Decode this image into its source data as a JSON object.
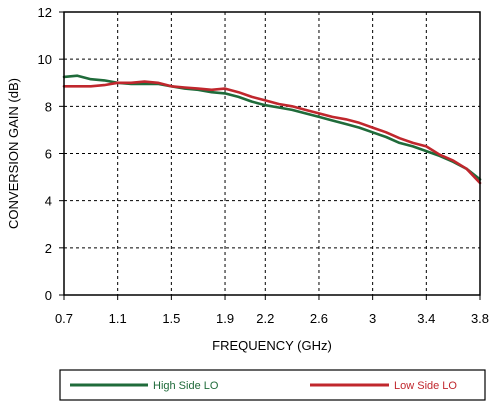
{
  "chart_data": {
    "type": "line",
    "title": "",
    "xlabel": "FREQUENCY (GHz)",
    "ylabel": "CONVERSION GAIN (dB)",
    "xlim": [
      0.7,
      3.8
    ],
    "ylim": [
      0,
      12
    ],
    "x_ticks": [
      0.7,
      1.1,
      1.5,
      1.9,
      2.2,
      2.6,
      3,
      3.4,
      3.8
    ],
    "x_tick_labels": [
      "0.7",
      "1.1",
      "1.5",
      "1.9",
      "2.2",
      "2.6",
      "3",
      "3.4",
      "3.8"
    ],
    "y_ticks": [
      0,
      2,
      4,
      6,
      8,
      10,
      12
    ],
    "y_tick_labels": [
      "0",
      "2",
      "4",
      "6",
      "8",
      "10",
      "12"
    ],
    "grid": true,
    "legend_position": "bottom",
    "series": [
      {
        "name": "High Side LO",
        "color": "#1f6b3a",
        "points": [
          [
            0.7,
            9.25
          ],
          [
            0.8,
            9.3
          ],
          [
            0.9,
            9.15
          ],
          [
            1.0,
            9.1
          ],
          [
            1.1,
            9.0
          ],
          [
            1.2,
            8.95
          ],
          [
            1.3,
            8.95
          ],
          [
            1.4,
            8.95
          ],
          [
            1.5,
            8.85
          ],
          [
            1.6,
            8.75
          ],
          [
            1.7,
            8.7
          ],
          [
            1.8,
            8.6
          ],
          [
            1.9,
            8.55
          ],
          [
            2.0,
            8.4
          ],
          [
            2.1,
            8.2
          ],
          [
            2.2,
            8.05
          ],
          [
            2.3,
            7.95
          ],
          [
            2.4,
            7.85
          ],
          [
            2.5,
            7.7
          ],
          [
            2.6,
            7.55
          ],
          [
            2.7,
            7.4
          ],
          [
            2.8,
            7.25
          ],
          [
            2.9,
            7.1
          ],
          [
            3.0,
            6.9
          ],
          [
            3.1,
            6.7
          ],
          [
            3.2,
            6.45
          ],
          [
            3.3,
            6.3
          ],
          [
            3.4,
            6.1
          ],
          [
            3.5,
            5.9
          ],
          [
            3.6,
            5.65
          ],
          [
            3.7,
            5.35
          ],
          [
            3.8,
            4.9
          ]
        ]
      },
      {
        "name": "Low Side LO",
        "color": "#c0272d",
        "points": [
          [
            0.7,
            8.85
          ],
          [
            0.8,
            8.85
          ],
          [
            0.9,
            8.85
          ],
          [
            1.0,
            8.9
          ],
          [
            1.1,
            9.0
          ],
          [
            1.2,
            9.0
          ],
          [
            1.3,
            9.05
          ],
          [
            1.4,
            9.0
          ],
          [
            1.5,
            8.85
          ],
          [
            1.6,
            8.8
          ],
          [
            1.7,
            8.75
          ],
          [
            1.8,
            8.7
          ],
          [
            1.9,
            8.75
          ],
          [
            2.0,
            8.6
          ],
          [
            2.1,
            8.4
          ],
          [
            2.2,
            8.25
          ],
          [
            2.3,
            8.1
          ],
          [
            2.4,
            8.0
          ],
          [
            2.5,
            7.85
          ],
          [
            2.6,
            7.7
          ],
          [
            2.7,
            7.55
          ],
          [
            2.8,
            7.45
          ],
          [
            2.9,
            7.3
          ],
          [
            3.0,
            7.1
          ],
          [
            3.1,
            6.9
          ],
          [
            3.2,
            6.65
          ],
          [
            3.3,
            6.45
          ],
          [
            3.4,
            6.3
          ],
          [
            3.5,
            5.95
          ],
          [
            3.6,
            5.7
          ],
          [
            3.7,
            5.35
          ],
          [
            3.8,
            4.75
          ]
        ]
      }
    ]
  }
}
